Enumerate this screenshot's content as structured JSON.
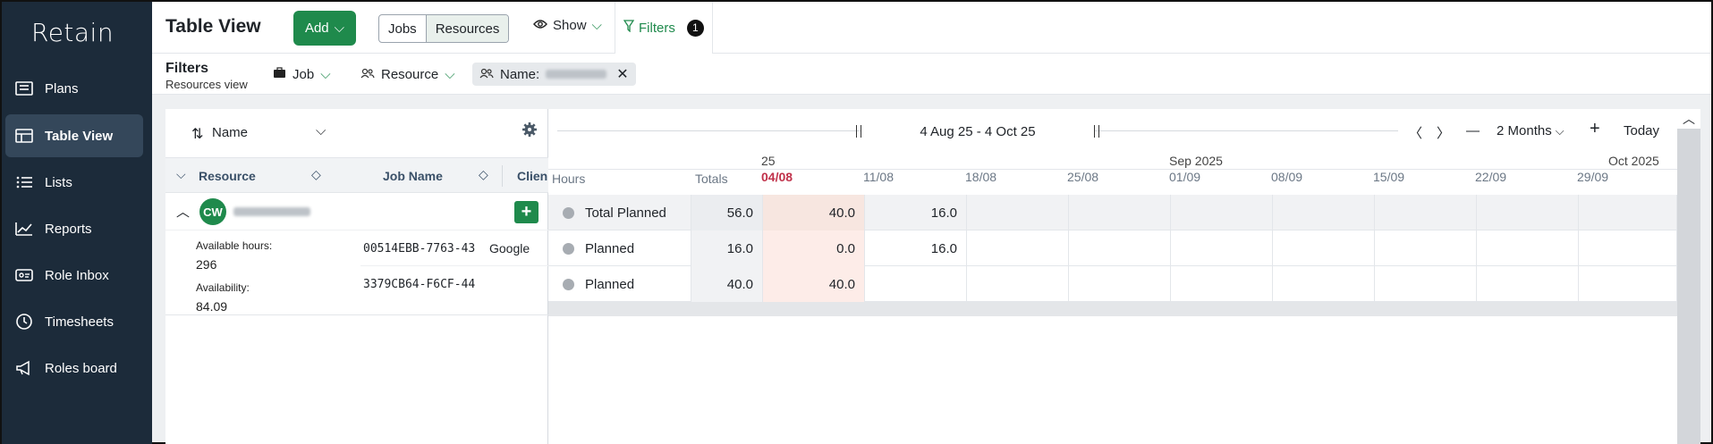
{
  "app": {
    "logo": "Retain"
  },
  "sidebar": {
    "items": [
      {
        "label": "Plans",
        "icon": "plans-icon"
      },
      {
        "label": "Table View",
        "icon": "table-icon",
        "active": true
      },
      {
        "label": "Lists",
        "icon": "list-icon"
      },
      {
        "label": "Reports",
        "icon": "reports-icon"
      },
      {
        "label": "Role Inbox",
        "icon": "inbox-icon"
      },
      {
        "label": "Timesheets",
        "icon": "clock-icon"
      },
      {
        "label": "Roles board",
        "icon": "megaphone-icon"
      }
    ]
  },
  "header": {
    "title": "Table View",
    "add_label": "Add",
    "view_toggle": [
      "Jobs",
      "Resources"
    ],
    "show_label": "Show",
    "filters_label": "Filters",
    "filters_count": "1"
  },
  "filterbar": {
    "title": "Filters",
    "subtitle": "Resources view",
    "job_label": "Job",
    "resource_label": "Resource",
    "name_label": "Name:"
  },
  "leftpanel": {
    "sort_label": "Name",
    "columns": [
      "Resource",
      "Job Name",
      "Clien"
    ],
    "resource": {
      "initials": "CW",
      "available_hours_label": "Available hours:",
      "available_hours": "296",
      "availability_label": "Availability:",
      "availability": "84.09"
    },
    "jobs": [
      {
        "id": "00514EBB-7763-43",
        "client": "Google"
      },
      {
        "id": "3379CB64-F6CF-44",
        "client": ""
      }
    ]
  },
  "timeline": {
    "range": "4 Aug 25 - 4 Oct 25",
    "zoom": "2 Months",
    "today_label": "Today",
    "hours_label": "Hours",
    "totals_label": "Totals",
    "year_label": "25",
    "month_labels": [
      "Sep 2025",
      "Oct 2025"
    ],
    "weeks": [
      "04/08",
      "11/08",
      "18/08",
      "25/08",
      "01/09",
      "08/09",
      "15/09",
      "22/09",
      "29/09"
    ],
    "rows": [
      {
        "label": "Total Planned",
        "total": "56.0",
        "values": [
          "40.0",
          "16.0"
        ]
      },
      {
        "label": "Planned",
        "total": "16.0",
        "values": [
          "0.0",
          "16.0"
        ]
      },
      {
        "label": "Planned",
        "total": "40.0",
        "values": [
          "40.0",
          ""
        ]
      }
    ],
    "colors": {
      "current_week_text": "#c0314a",
      "current_week_bg": "#fdece8",
      "accent": "#1f8a4c"
    }
  }
}
